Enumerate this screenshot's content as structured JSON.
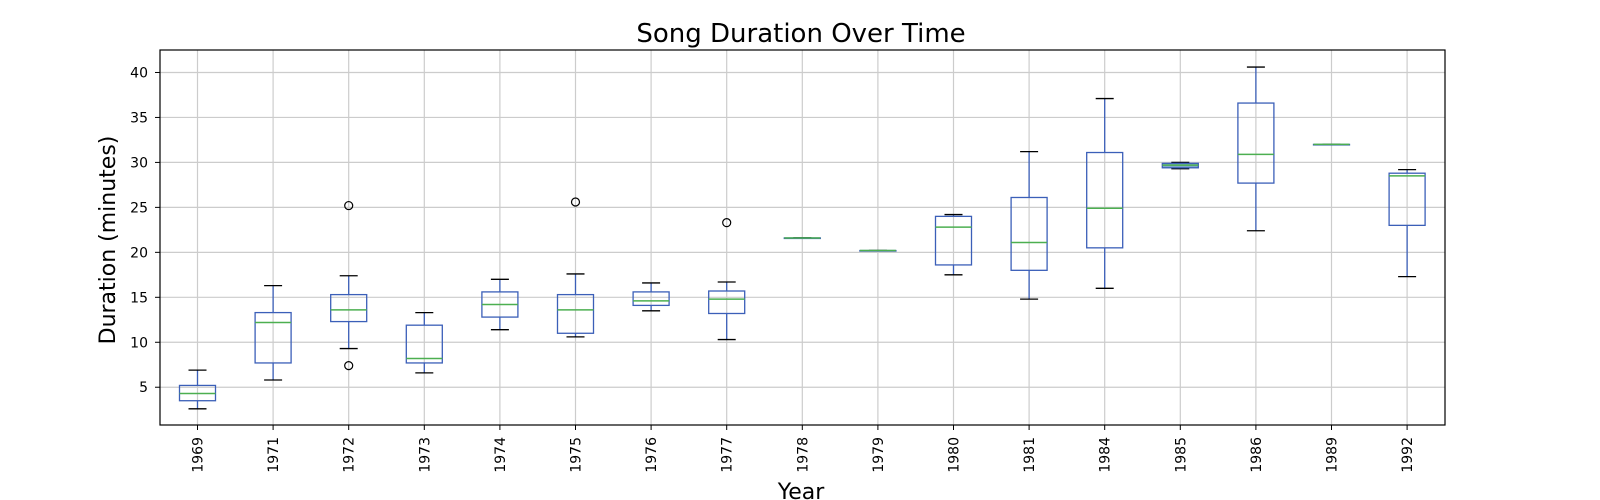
{
  "chart_data": {
    "type": "box",
    "title": "Song Duration Over Time",
    "xlabel": "Year",
    "ylabel": "Duration (minutes)",
    "ylim": [
      0.8,
      42.5
    ],
    "yticks": [
      5,
      10,
      15,
      20,
      25,
      30,
      35,
      40
    ],
    "grid": true,
    "categories": [
      "1969",
      "1971",
      "1972",
      "1973",
      "1974",
      "1975",
      "1976",
      "1977",
      "1978",
      "1979",
      "1980",
      "1981",
      "1984",
      "1985",
      "1986",
      "1989",
      "1992"
    ],
    "boxes": [
      {
        "whislo": 2.6,
        "q1": 3.5,
        "med": 4.3,
        "q3": 5.2,
        "whishi": 6.9,
        "fliers": []
      },
      {
        "whislo": 5.8,
        "q1": 7.7,
        "med": 12.2,
        "q3": 13.3,
        "whishi": 16.3,
        "fliers": []
      },
      {
        "whislo": 9.3,
        "q1": 12.3,
        "med": 13.6,
        "q3": 15.3,
        "whishi": 17.4,
        "fliers": [
          25.2,
          7.4
        ]
      },
      {
        "whislo": 6.6,
        "q1": 7.7,
        "med": 8.2,
        "q3": 11.9,
        "whishi": 13.3,
        "fliers": []
      },
      {
        "whislo": 11.4,
        "q1": 12.8,
        "med": 14.2,
        "q3": 15.6,
        "whishi": 17.0,
        "fliers": []
      },
      {
        "whislo": 10.6,
        "q1": 11.0,
        "med": 13.6,
        "q3": 15.3,
        "whishi": 17.6,
        "fliers": [
          25.6
        ]
      },
      {
        "whislo": 13.5,
        "q1": 14.1,
        "med": 14.6,
        "q3": 15.6,
        "whishi": 16.6,
        "fliers": []
      },
      {
        "whislo": 10.3,
        "q1": 13.2,
        "med": 14.8,
        "q3": 15.7,
        "whishi": 16.7,
        "fliers": [
          23.3
        ]
      },
      {
        "whislo": 21.6,
        "q1": 21.6,
        "med": 21.6,
        "q3": 21.6,
        "whishi": 21.6,
        "fliers": []
      },
      {
        "whislo": 20.2,
        "q1": 20.2,
        "med": 20.2,
        "q3": 20.2,
        "whishi": 20.2,
        "fliers": []
      },
      {
        "whislo": 17.5,
        "q1": 18.6,
        "med": 22.8,
        "q3": 24.0,
        "whishi": 24.2,
        "fliers": []
      },
      {
        "whislo": 14.8,
        "q1": 18.0,
        "med": 21.1,
        "q3": 26.1,
        "whishi": 31.2,
        "fliers": []
      },
      {
        "whislo": 16.0,
        "q1": 20.5,
        "med": 24.9,
        "q3": 31.1,
        "whishi": 37.1,
        "fliers": []
      },
      {
        "whislo": 29.3,
        "q1": 29.4,
        "med": 29.7,
        "q3": 29.9,
        "whishi": 30.0,
        "fliers": []
      },
      {
        "whislo": 22.4,
        "q1": 27.7,
        "med": 30.9,
        "q3": 36.6,
        "whishi": 40.6,
        "fliers": []
      },
      {
        "whislo": 32.0,
        "q1": 32.0,
        "med": 32.0,
        "q3": 32.0,
        "whishi": 32.0,
        "fliers": []
      },
      {
        "whislo": 17.3,
        "q1": 23.0,
        "med": 28.5,
        "q3": 28.8,
        "whishi": 29.2,
        "fliers": []
      }
    ],
    "colors": {
      "box": "#3b5fb8",
      "median": "#4caf50",
      "cap": "#000000",
      "grid": "#cccccc"
    }
  }
}
